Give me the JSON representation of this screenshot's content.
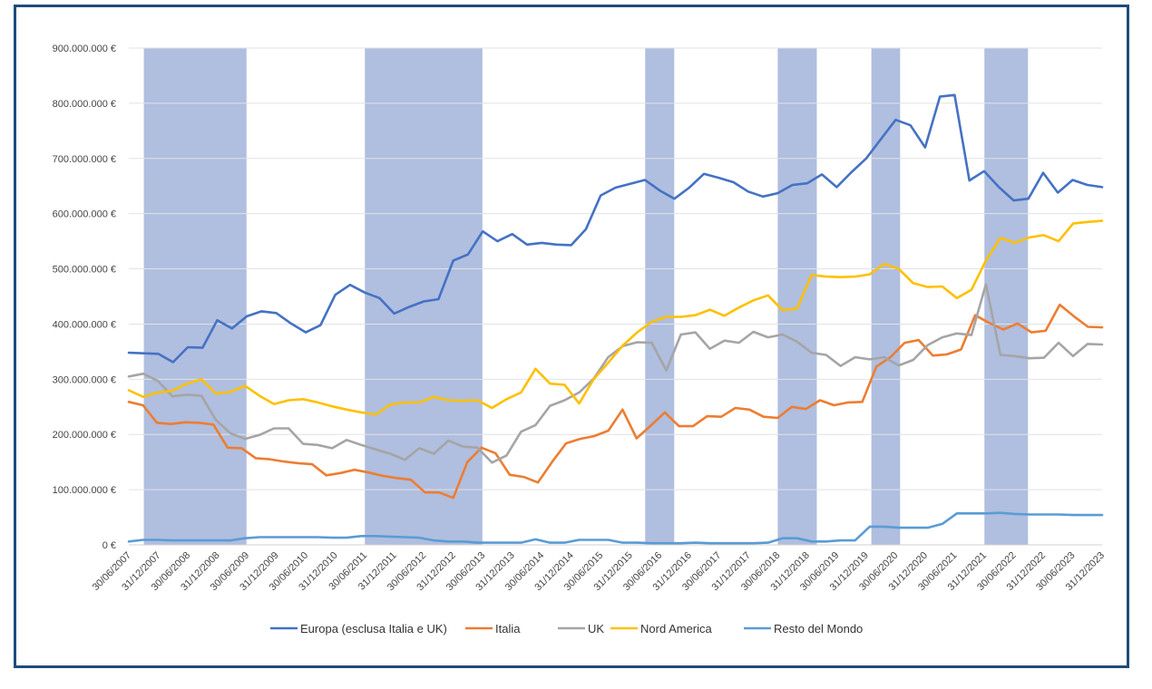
{
  "chart_data": {
    "type": "line",
    "title": "",
    "xlabel": "",
    "ylabel": "",
    "ylim": [
      0,
      900000000
    ],
    "y_ticks": [
      {
        "value": 0,
        "label": "0 €"
      },
      {
        "value": 100000000,
        "label": "100.000.000 €"
      },
      {
        "value": 200000000,
        "label": "200.000.000 €"
      },
      {
        "value": 300000000,
        "label": "300.000.000 €"
      },
      {
        "value": 400000000,
        "label": "400.000.000 €"
      },
      {
        "value": 500000000,
        "label": "500.000.000 €"
      },
      {
        "value": 600000000,
        "label": "600.000.000 €"
      },
      {
        "value": 700000000,
        "label": "700.000.000 €"
      },
      {
        "value": 800000000,
        "label": "800.000.000 €"
      },
      {
        "value": 900000000,
        "label": "900.000.000 €"
      }
    ],
    "x_tick_labels": [
      "30/06/2007",
      "31/12/2007",
      "30/06/2008",
      "31/12/2008",
      "30/06/2009",
      "31/12/2009",
      "30/06/2010",
      "31/12/2010",
      "30/06/2011",
      "31/12/2011",
      "30/06/2012",
      "31/12/2012",
      "30/06/2013",
      "31/12/2013",
      "30/06/2014",
      "31/12/2014",
      "30/06/2015",
      "31/12/2015",
      "30/06/2016",
      "31/12/2016",
      "30/06/2017",
      "31/12/2017",
      "30/06/2018",
      "31/12/2018",
      "30/06/2019",
      "31/12/2019",
      "30/06/2020",
      "31/12/2020",
      "30/06/2021",
      "31/12/2021",
      "30/06/2022",
      "31/12/2022",
      "30/06/2023",
      "31/12/2023"
    ],
    "x_start": "2007-06-30",
    "x_end": "2023-12-31",
    "shaded_periods": [
      {
        "start": "2007-10",
        "end": "2009-06"
      },
      {
        "start": "2011-07",
        "end": "2013-06"
      },
      {
        "start": "2016-04",
        "end": "2016-09"
      },
      {
        "start": "2018-07",
        "end": "2019-02"
      },
      {
        "start": "2020-02",
        "end": "2020-07"
      },
      {
        "start": "2022-01",
        "end": "2022-09"
      }
    ],
    "grid": true,
    "legend_position": "bottom",
    "series": [
      {
        "name": "Europa (esclusa Italia e UK)",
        "color": "#4472c4",
        "values": [
          348,
          347,
          346,
          331,
          358,
          357,
          407,
          392,
          414,
          423,
          420,
          401,
          385,
          398,
          453,
          471,
          457,
          447,
          419,
          431,
          441,
          445,
          515,
          526,
          568,
          550,
          563,
          544,
          547,
          544,
          543,
          572,
          633,
          647,
          654,
          661,
          642,
          627,
          647,
          672,
          665,
          657,
          640,
          631,
          637,
          652,
          655,
          671,
          648,
          675,
          700,
          735,
          770,
          760,
          720,
          812,
          815,
          660,
          677,
          648,
          624,
          627,
          674,
          638,
          661,
          652,
          648
        ]
      },
      {
        "name": "Italia",
        "color": "#ed7d31",
        "values": [
          259,
          253,
          221,
          219,
          222,
          221,
          218,
          176,
          175,
          157,
          155,
          151,
          148,
          146,
          126,
          130,
          136,
          131,
          125,
          121,
          118,
          95,
          95,
          85,
          150,
          176,
          166,
          127,
          123,
          113,
          150,
          184,
          192,
          197,
          207,
          245,
          193,
          216,
          240,
          215,
          215,
          233,
          232,
          248,
          245,
          232,
          230,
          250,
          246,
          262,
          253,
          258,
          259,
          323,
          340,
          366,
          371,
          343,
          345,
          354,
          416,
          402,
          390,
          401,
          385,
          388,
          435,
          414,
          395,
          394
        ]
      },
      {
        "name": "UK",
        "color": "#a5a5a5",
        "values": [
          305,
          310,
          297,
          269,
          272,
          270,
          226,
          202,
          192,
          199,
          211,
          211,
          183,
          181,
          175,
          190,
          181,
          173,
          165,
          154,
          175,
          165,
          189,
          178,
          176,
          149,
          162,
          205,
          217,
          252,
          262,
          276,
          301,
          340,
          360,
          367,
          366,
          316,
          381,
          385,
          355,
          370,
          366,
          386,
          376,
          381,
          368,
          348,
          344,
          324,
          340,
          336,
          340,
          325,
          335,
          362,
          376,
          383,
          380,
          472,
          344,
          342,
          338,
          339,
          366,
          342,
          364,
          363
        ]
      },
      {
        "name": "Nord America",
        "color": "#ffc000",
        "values": [
          280,
          268,
          276,
          279,
          292,
          300,
          274,
          277,
          288,
          270,
          255,
          262,
          264,
          258,
          251,
          245,
          240,
          236,
          254,
          258,
          258,
          268,
          262,
          261,
          262,
          248,
          264,
          276,
          319,
          292,
          290,
          256,
          300,
          330,
          361,
          385,
          404,
          413,
          413,
          416,
          426,
          415,
          430,
          443,
          452,
          425,
          428,
          489,
          486,
          485,
          486,
          490,
          509,
          500,
          474,
          467,
          468,
          447,
          462,
          515,
          556,
          547,
          557,
          561,
          550,
          582,
          585,
          587
        ]
      },
      {
        "name": "Resto del Mondo",
        "color": "#5b9bd5",
        "values": [
          6,
          9,
          9,
          8,
          8,
          8,
          8,
          8,
          12,
          14,
          14,
          14,
          14,
          14,
          13,
          13,
          16,
          16,
          15,
          14,
          13,
          8,
          6,
          6,
          4,
          4,
          4,
          4,
          10,
          4,
          4,
          9,
          9,
          9,
          4,
          4,
          3,
          3,
          3,
          4,
          3,
          3,
          3,
          3,
          4,
          12,
          12,
          6,
          6,
          8,
          8,
          33,
          33,
          31,
          31,
          31,
          38,
          57,
          57,
          57,
          58,
          56,
          55,
          55,
          55,
          54,
          54,
          54
        ]
      }
    ]
  }
}
